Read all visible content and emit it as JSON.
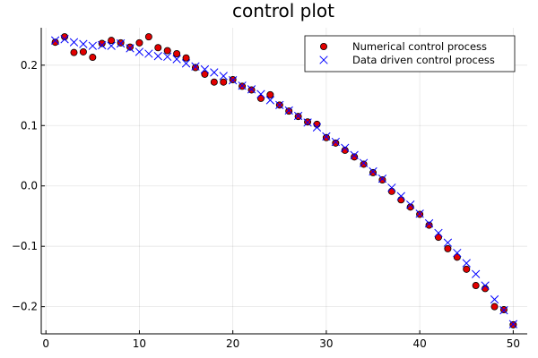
{
  "chart_data": {
    "type": "scatter",
    "title": "control plot",
    "xlabel": "",
    "ylabel": "",
    "xlim": [
      -0.5,
      51.5
    ],
    "ylim": [
      -0.245,
      0.262
    ],
    "xticks": [
      0,
      10,
      20,
      30,
      40,
      50
    ],
    "xtick_labels": [
      "0",
      "10",
      "20",
      "30",
      "40",
      "50"
    ],
    "yticks": [
      -0.2,
      -0.1,
      0.0,
      0.1,
      0.2
    ],
    "ytick_labels": [
      "−0.2",
      "−0.1",
      "0.0",
      "0.1",
      "0.2"
    ],
    "grid": true,
    "legend_position": "top-right",
    "series": [
      {
        "name": "Numerical control process",
        "marker": "circle",
        "color": "#e20000",
        "x": [
          1,
          2,
          3,
          4,
          5,
          6,
          7,
          8,
          9,
          10,
          11,
          12,
          13,
          14,
          15,
          16,
          17,
          18,
          19,
          20,
          21,
          22,
          23,
          24,
          25,
          26,
          27,
          28,
          29,
          30,
          31,
          32,
          33,
          34,
          35,
          36,
          37,
          38,
          39,
          40,
          41,
          42,
          43,
          44,
          45,
          46,
          47,
          48,
          49,
          50
        ],
        "y": [
          0.238,
          0.247,
          0.221,
          0.222,
          0.213,
          0.236,
          0.241,
          0.237,
          0.23,
          0.237,
          0.247,
          0.229,
          0.224,
          0.219,
          0.212,
          0.196,
          0.185,
          0.172,
          0.172,
          0.176,
          0.165,
          0.159,
          0.145,
          0.151,
          0.134,
          0.124,
          0.115,
          0.106,
          0.102,
          0.08,
          0.071,
          0.059,
          0.048,
          0.036,
          0.022,
          0.01,
          -0.009,
          -0.023,
          -0.035,
          -0.047,
          -0.065,
          -0.085,
          -0.104,
          -0.118,
          -0.138,
          -0.165,
          -0.17,
          -0.2,
          -0.205,
          -0.23
        ]
      },
      {
        "name": "Data driven control process",
        "marker": "x",
        "color": "#0000ff",
        "x": [
          1,
          2,
          3,
          4,
          5,
          6,
          7,
          8,
          9,
          10,
          11,
          12,
          13,
          14,
          15,
          16,
          17,
          18,
          19,
          20,
          21,
          22,
          23,
          24,
          25,
          26,
          27,
          28,
          29,
          30,
          31,
          32,
          33,
          34,
          35,
          36,
          37,
          38,
          39,
          40,
          41,
          42,
          43,
          44,
          45,
          46,
          47,
          48,
          49,
          50
        ],
        "y": [
          0.241,
          0.243,
          0.238,
          0.235,
          0.232,
          0.233,
          0.232,
          0.236,
          0.228,
          0.222,
          0.219,
          0.215,
          0.214,
          0.21,
          0.203,
          0.198,
          0.193,
          0.188,
          0.182,
          0.175,
          0.166,
          0.16,
          0.152,
          0.142,
          0.134,
          0.125,
          0.116,
          0.105,
          0.097,
          0.082,
          0.073,
          0.063,
          0.051,
          0.038,
          0.024,
          0.012,
          -0.003,
          -0.017,
          -0.031,
          -0.046,
          -0.062,
          -0.078,
          -0.094,
          -0.111,
          -0.128,
          -0.146,
          -0.165,
          -0.188,
          -0.206,
          -0.229
        ]
      }
    ]
  }
}
